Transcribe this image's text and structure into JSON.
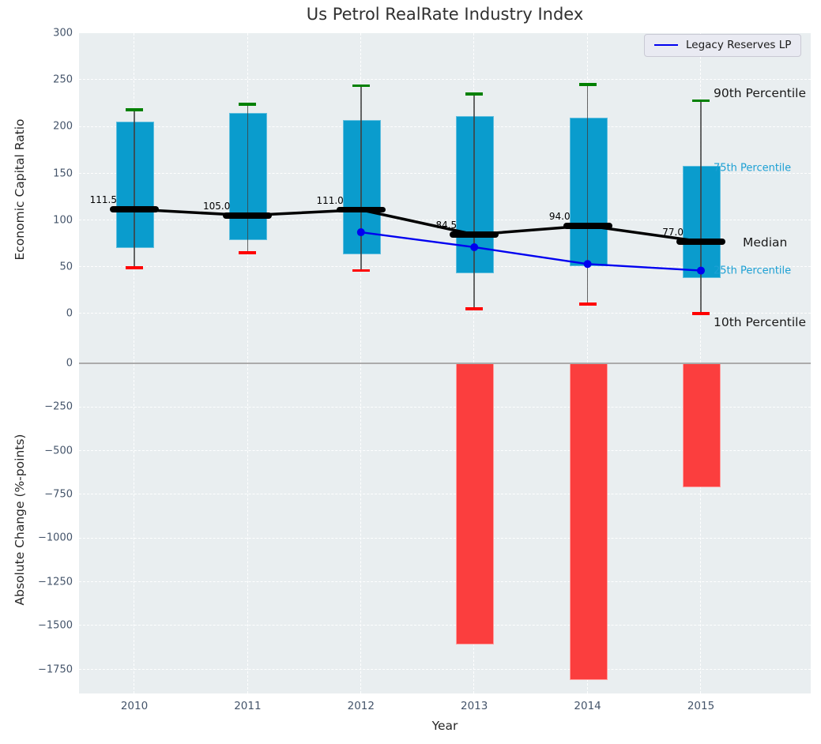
{
  "title": "Us Petrol RealRate Industry Index",
  "colors": {
    "panel_bg": "#e9eef0",
    "box_fill": "#0a9ccd",
    "p90_cap": "#008000",
    "p10_cap": "#ff0000",
    "median": "#000000",
    "company_line": "#0000f0",
    "change_bar": "#fb3e3e",
    "tick_label": "#44546a",
    "annotation_dark": "#1a1a1a",
    "annotation_teal": "#1ca0d4",
    "zero_line": "#ababab"
  },
  "chart_data": [
    {
      "type": "boxplot",
      "title": "Us Petrol RealRate Industry Index",
      "ylabel": "Economic Capital Ratio",
      "xlabel": "",
      "categories": [
        "2010",
        "2011",
        "2012",
        "2013",
        "2014",
        "2015"
      ],
      "yticks": [
        300,
        250,
        200,
        150,
        100,
        50,
        0
      ],
      "ylim": [
        -36,
        300
      ],
      "grid": true,
      "legend": [
        "Legacy Reserves LP"
      ],
      "legend_position": "upper right",
      "series": [
        {
          "name": "10th_percentile",
          "values": [
            49,
            65,
            46,
            5,
            10,
            0
          ]
        },
        {
          "name": "25th_percentile",
          "values": [
            72,
            80,
            65,
            45,
            52,
            40
          ]
        },
        {
          "name": "median",
          "values": [
            111.5,
            105.0,
            111.0,
            84.5,
            94.0,
            77.0
          ]
        },
        {
          "name": "75th_percentile",
          "values": [
            205,
            215,
            207,
            211,
            210,
            158
          ]
        },
        {
          "name": "90th_percentile",
          "values": [
            218,
            224,
            244,
            235,
            245,
            228
          ]
        }
      ],
      "median_labels": [
        "111.5",
        "105.0",
        "111.0",
        "84.5",
        "94.0",
        "77.0"
      ],
      "company_line": {
        "name": "Legacy Reserves LP",
        "x": [
          "2012",
          "2013",
          "2014",
          "2015"
        ],
        "values": [
          87,
          71,
          53,
          46
        ]
      },
      "annotations": [
        {
          "text": "90th Percentile",
          "value": 228,
          "dy": -9,
          "x": 903,
          "size": 15.5,
          "color": "#1a1a1a"
        },
        {
          "text": "75th Percentile",
          "value": 158,
          "dy": 3,
          "x": 903,
          "size": 13,
          "color": "#1ca0d4"
        },
        {
          "text": "Median",
          "value": 77,
          "dy": 1,
          "x": 940,
          "size": 15.5,
          "color": "#1a1a1a"
        },
        {
          "text": "25th Percentile",
          "value": 40,
          "dy": -7,
          "x": 903,
          "size": 13,
          "color": "#1ca0d4"
        },
        {
          "text": "10th Percentile",
          "value": 0,
          "dy": 11,
          "x": 903,
          "size": 15.5,
          "color": "#1a1a1a"
        }
      ]
    },
    {
      "type": "bar",
      "title": "",
      "ylabel": "Absolute Change (%-points)",
      "xlabel": "Year",
      "categories": [
        "2010",
        "2011",
        "2012",
        "2013",
        "2014",
        "2015"
      ],
      "values": [
        0,
        0,
        0,
        -1600,
        -1800,
        -700
      ],
      "yticks": [
        0,
        -250,
        -500,
        -750,
        -1000,
        -1250,
        -1500,
        -1750
      ],
      "ylim": [
        -1890,
        90
      ],
      "grid": true
    }
  ]
}
